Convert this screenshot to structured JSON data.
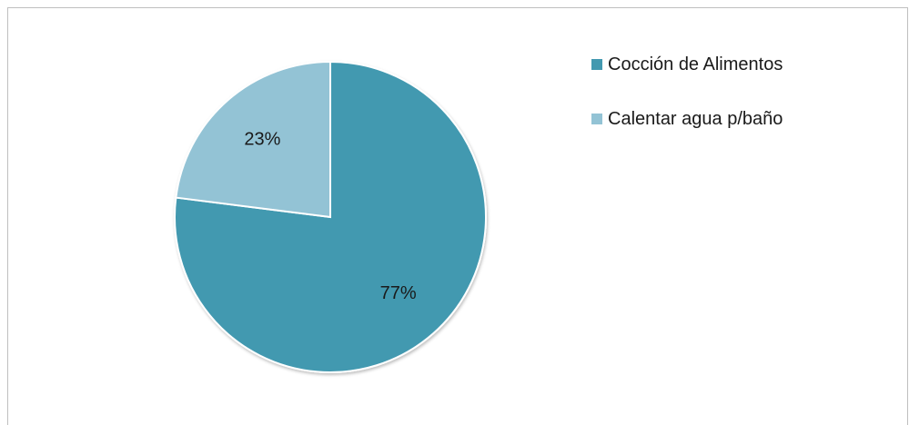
{
  "chart_data": {
    "type": "pie",
    "title": "",
    "categories": [
      "Cocción de Alimentos",
      "Calentar agua p/baño"
    ],
    "values": [
      77,
      23
    ],
    "labels": [
      "77%",
      "23%"
    ],
    "colors": [
      "#4399B0",
      "#93C3D5"
    ],
    "legend_position": "right"
  }
}
